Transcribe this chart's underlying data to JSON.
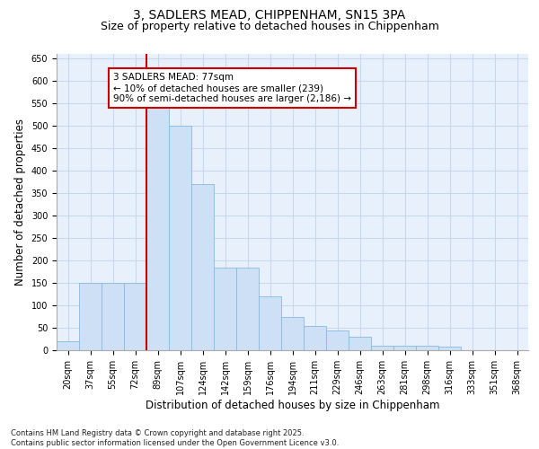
{
  "title_line1": "3, SADLERS MEAD, CHIPPENHAM, SN15 3PA",
  "title_line2": "Size of property relative to detached houses in Chippenham",
  "xlabel": "Distribution of detached houses by size in Chippenham",
  "ylabel": "Number of detached properties",
  "bins": [
    "20sqm",
    "37sqm",
    "55sqm",
    "72sqm",
    "89sqm",
    "107sqm",
    "124sqm",
    "142sqm",
    "159sqm",
    "176sqm",
    "194sqm",
    "211sqm",
    "229sqm",
    "246sqm",
    "263sqm",
    "281sqm",
    "298sqm",
    "316sqm",
    "333sqm",
    "351sqm",
    "368sqm"
  ],
  "values": [
    20,
    150,
    150,
    150,
    540,
    500,
    370,
    185,
    185,
    120,
    75,
    55,
    45,
    30,
    10,
    10,
    10,
    8,
    0,
    0,
    0
  ],
  "bar_color": "#cde0f5",
  "bar_edge_color": "#88b8e0",
  "grid_color": "#c5d8ee",
  "background_color": "#e8f1fb",
  "red_line_x": 3.5,
  "red_line_color": "#cc0000",
  "annotation_text": "3 SADLERS MEAD: 77sqm\n← 10% of detached houses are smaller (239)\n90% of semi-detached houses are larger (2,186) →",
  "annotation_box_color": "#ffffff",
  "annotation_box_edge": "#cc0000",
  "ylim": [
    0,
    660
  ],
  "yticks": [
    0,
    50,
    100,
    150,
    200,
    250,
    300,
    350,
    400,
    450,
    500,
    550,
    600,
    650
  ],
  "footer": "Contains HM Land Registry data © Crown copyright and database right 2025.\nContains public sector information licensed under the Open Government Licence v3.0.",
  "title_fontsize": 10,
  "subtitle_fontsize": 9,
  "tick_fontsize": 7,
  "label_fontsize": 8.5
}
